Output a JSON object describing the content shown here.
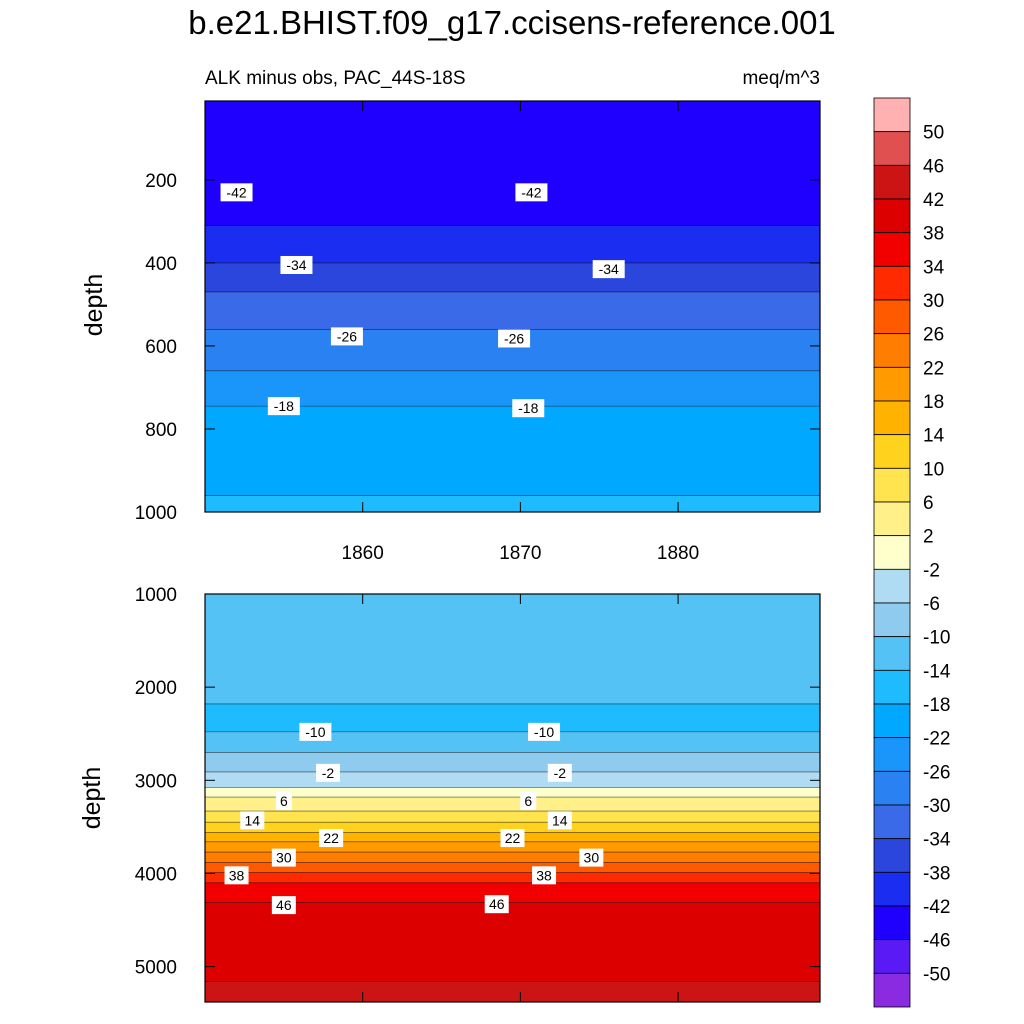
{
  "chart_data": {
    "type": "contour",
    "title": "b.e21.BHIST.f09_g17.ccisens-reference.001",
    "subtitle_left": "ALK minus obs, PAC_44S-18S",
    "subtitle_right": "meq/m^3",
    "xlim": [
      1850,
      1889
    ],
    "x_ticks": [
      1860,
      1870,
      1880
    ],
    "x_tick_labels": [
      "1860",
      "1870",
      "1880"
    ],
    "colorbar": {
      "levels": [
        -50,
        -46,
        -42,
        -38,
        -34,
        -30,
        -26,
        -22,
        -18,
        -14,
        -10,
        -6,
        -2,
        2,
        6,
        10,
        14,
        18,
        22,
        26,
        30,
        34,
        38,
        42,
        46,
        50
      ],
      "labels": [
        "-50",
        "-46",
        "-42",
        "-38",
        "-34",
        "-30",
        "-26",
        "-22",
        "-18",
        "-14",
        "-10",
        "-6",
        "-2",
        "2",
        "6",
        "10",
        "14",
        "18",
        "22",
        "26",
        "30",
        "34",
        "38",
        "42",
        "46",
        "50"
      ],
      "colors": [
        "#8a2be2",
        "#5a1af5",
        "#1f00ff",
        "#1a2df0",
        "#2a46dd",
        "#3a6ae8",
        "#2a82f2",
        "#1a96fa",
        "#00a8ff",
        "#1ebcff",
        "#55c2f5",
        "#8ecbee",
        "#b0dcf3",
        "#ffffcc",
        "#fff08a",
        "#ffe450",
        "#ffd21e",
        "#ffb300",
        "#ff9a00",
        "#ff7d00",
        "#ff5a00",
        "#ff2a00",
        "#f20000",
        "#dc0000",
        "#cc1414",
        "#e05050",
        "#ffb0b0"
      ]
    },
    "panels": [
      {
        "name": "upper",
        "ylabel": "depth",
        "ylim": [
          10,
          1000
        ],
        "y_ticks": [
          200,
          400,
          600,
          800,
          1000
        ],
        "y_tick_labels": [
          "200",
          "400",
          "600",
          "800",
          "1000"
        ],
        "contour_depths": [
          {
            "value": -46,
            "depth": 60
          },
          {
            "value": -42,
            "depth": 310
          },
          {
            "value": -38,
            "depth": 400
          },
          {
            "value": -34,
            "depth": 470
          },
          {
            "value": -30,
            "depth": 560
          },
          {
            "value": -26,
            "depth": 660
          },
          {
            "value": -22,
            "depth": 745
          },
          {
            "value": -18,
            "depth": 960
          }
        ],
        "contour_labels": [
          {
            "text": "-42",
            "x": 1852,
            "y": 230
          },
          {
            "text": "-42",
            "x": 1870.7,
            "y": 230
          },
          {
            "text": "-34",
            "x": 1855.8,
            "y": 405
          },
          {
            "text": "-34",
            "x": 1875.6,
            "y": 415
          },
          {
            "text": "-26",
            "x": 1859,
            "y": 577
          },
          {
            "text": "-26",
            "x": 1869.6,
            "y": 582
          },
          {
            "text": "-18",
            "x": 1855,
            "y": 745
          },
          {
            "text": "-18",
            "x": 1870.5,
            "y": 750
          }
        ]
      },
      {
        "name": "lower",
        "ylabel": "depth",
        "ylim": [
          1000,
          5380
        ],
        "y_ticks": [
          1000,
          2000,
          3000,
          4000,
          5000
        ],
        "y_tick_labels": [
          "1000",
          "2000",
          "3000",
          "4000",
          "5000"
        ],
        "contour_depths": [
          {
            "value": -14,
            "depth": 1100
          },
          {
            "value": -18,
            "depth": 2180
          },
          {
            "value": -14,
            "depth": 2480
          },
          {
            "value": -10,
            "depth": 2700
          },
          {
            "value": -6,
            "depth": 2910
          },
          {
            "value": -2,
            "depth": 3080
          },
          {
            "value": 2,
            "depth": 3180
          },
          {
            "value": 6,
            "depth": 3330
          },
          {
            "value": 10,
            "depth": 3450
          },
          {
            "value": 14,
            "depth": 3560
          },
          {
            "value": 18,
            "depth": 3660
          },
          {
            "value": 22,
            "depth": 3770
          },
          {
            "value": 26,
            "depth": 3880
          },
          {
            "value": 30,
            "depth": 3990
          },
          {
            "value": 34,
            "depth": 4100
          },
          {
            "value": 38,
            "depth": 4310
          },
          {
            "value": 42,
            "depth": 5160
          },
          {
            "value": 46,
            "depth": 5380
          }
        ],
        "contour_labels": [
          {
            "text": "-10",
            "x": 1857,
            "y": 2480
          },
          {
            "text": "-10",
            "x": 1871.5,
            "y": 2480
          },
          {
            "text": "-2",
            "x": 1857.8,
            "y": 2920
          },
          {
            "text": "-2",
            "x": 1872.5,
            "y": 2920
          },
          {
            "text": "6",
            "x": 1855,
            "y": 3220
          },
          {
            "text": "6",
            "x": 1870.5,
            "y": 3220
          },
          {
            "text": "14",
            "x": 1853,
            "y": 3430
          },
          {
            "text": "14",
            "x": 1872.5,
            "y": 3430
          },
          {
            "text": "22",
            "x": 1858,
            "y": 3620
          },
          {
            "text": "22",
            "x": 1869.5,
            "y": 3620
          },
          {
            "text": "30",
            "x": 1855,
            "y": 3830
          },
          {
            "text": "30",
            "x": 1874.5,
            "y": 3830
          },
          {
            "text": "38",
            "x": 1852,
            "y": 4020
          },
          {
            "text": "38",
            "x": 1871.5,
            "y": 4020
          },
          {
            "text": "46",
            "x": 1855,
            "y": 4340
          },
          {
            "text": "46",
            "x": 1868.5,
            "y": 4330
          }
        ]
      }
    ]
  }
}
